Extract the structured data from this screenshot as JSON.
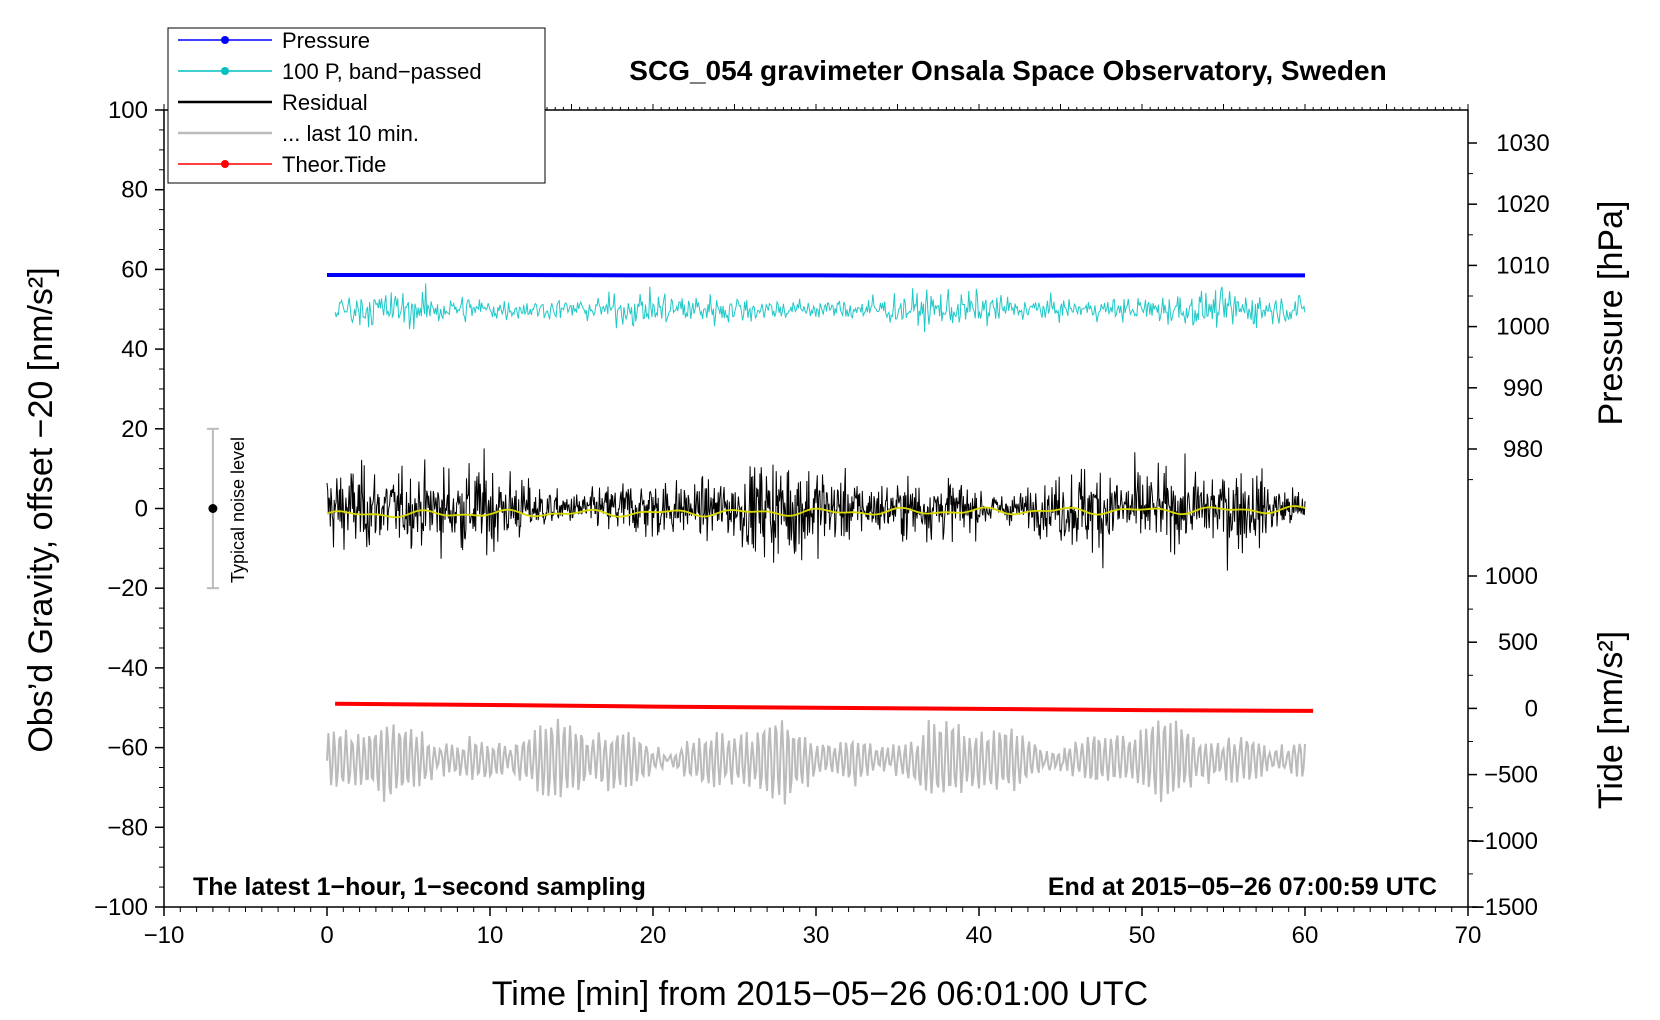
{
  "chart_data": {
    "type": "line",
    "title": "SCG_054 gravimeter Onsala Space Observatory, Sweden",
    "xlabel": "Time [min] from 2015−05−26 06:01:00 UTC",
    "ylabel_left": "Obs’d Gravity, offset −20 [nm/s²]",
    "ylabel_right_top": "Pressure [hPa]",
    "ylabel_right_bottom": "Tide [nm/s²]",
    "xlim": [
      -10,
      70
    ],
    "ylim": [
      -100,
      100
    ],
    "pressure_lim": [
      972,
      1036
    ],
    "tide_lim": [
      -1500,
      1000
    ],
    "x_ticks": [
      "−10",
      "0",
      "10",
      "20",
      "30",
      "40",
      "50",
      "60",
      "70"
    ],
    "y_ticks": [
      "100",
      "80",
      "60",
      "40",
      "20",
      "0",
      "−20",
      "−40",
      "−60",
      "−80",
      "−100"
    ],
    "pressure_ticks": [
      "1030",
      "1020",
      "1010",
      "1000",
      "990",
      "980"
    ],
    "tide_ticks": [
      "1000",
      "500",
      "0",
      "−500",
      "−1000",
      "−1500"
    ],
    "legend": [
      {
        "label": "Pressure",
        "color": "#0000ff",
        "marker": true
      },
      {
        "label": "100 P, band−passed",
        "color": "#00c0c0",
        "marker": true
      },
      {
        "label": "Residual",
        "color": "#000000",
        "marker": false
      },
      {
        "label": "... last 10 min.",
        "color": "#bbbbbb",
        "marker": false
      },
      {
        "label": "Theor.Tide",
        "color": "#ff0000",
        "marker": true
      }
    ],
    "series": [
      {
        "name": "Pressure",
        "color": "#0000ff",
        "x": [
          0,
          10,
          20,
          30,
          40,
          50,
          60
        ],
        "y": [
          58.6,
          58.6,
          58.5,
          58.5,
          58.4,
          58.5,
          58.5
        ]
      },
      {
        "name": "100 P, band-passed",
        "color": "#20c8c8",
        "x_range": [
          0.5,
          60
        ],
        "center": 50,
        "amplitude": 4
      },
      {
        "name": "Residual",
        "color": "#000000",
        "x_range": [
          0,
          60
        ],
        "center": 0,
        "amplitude": 10
      },
      {
        "name": "Residual (smoothed)",
        "color": "#d8d800",
        "x": [
          0,
          10,
          20,
          30,
          40,
          50,
          60
        ],
        "y": [
          -1.5,
          -1.3,
          -1.0,
          -0.8,
          -0.7,
          -0.5,
          -0.3
        ]
      },
      {
        "name": "... last 10 min.",
        "color": "#bbbbbb",
        "x_range": [
          0,
          60
        ],
        "center": -63,
        "amplitude": 8
      },
      {
        "name": "Theor.Tide",
        "color": "#ff0000",
        "x": [
          0.5,
          10,
          20,
          30,
          40,
          50,
          60.5
        ],
        "y": [
          -49.0,
          -49.3,
          -49.7,
          -50.0,
          -50.3,
          -50.6,
          -50.8
        ]
      }
    ],
    "noise_level": {
      "label": "Typical noise level",
      "x": -7,
      "center": 0,
      "range": [
        -20,
        20
      ]
    },
    "footer_left": "The latest 1−hour, 1−second sampling",
    "footer_right": "End at 2015−05−26 07:00:59 UTC"
  }
}
